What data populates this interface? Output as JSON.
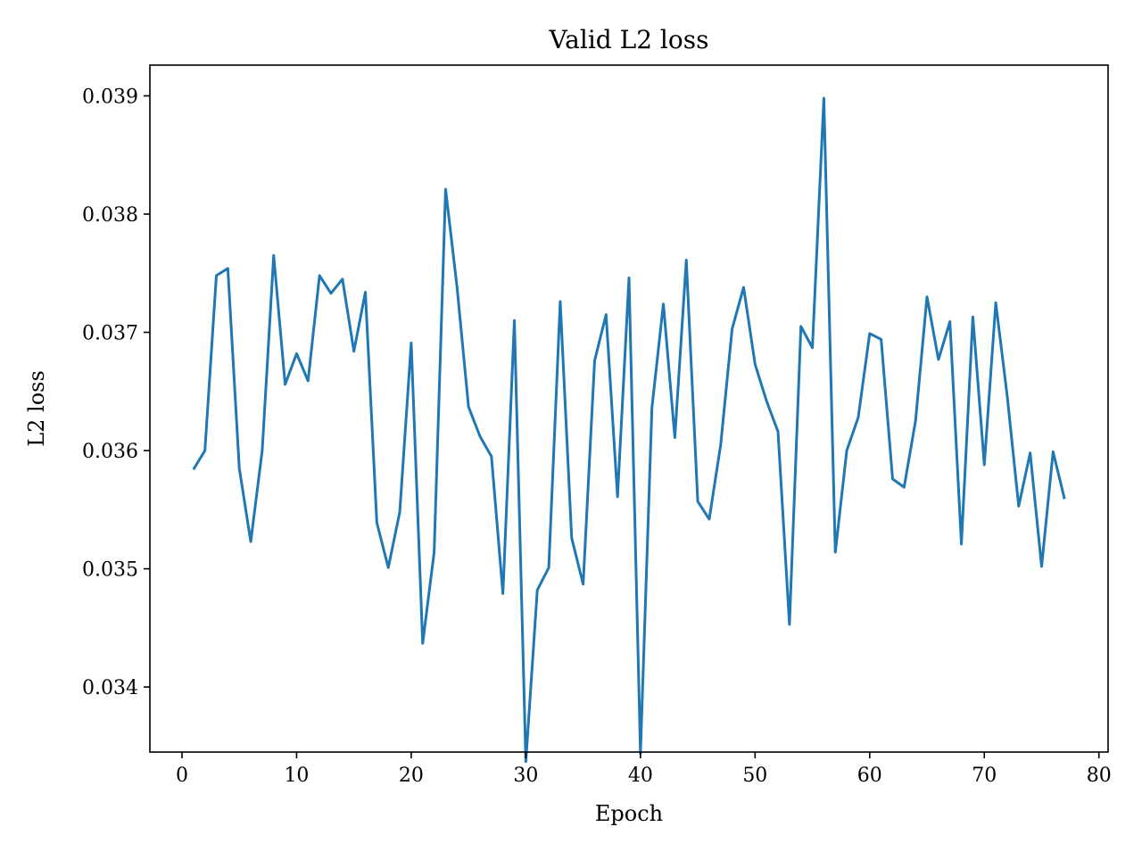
{
  "chart_data": {
    "type": "line",
    "title": "Valid L2 loss",
    "xlabel": "Epoch",
    "ylabel": "L2 loss",
    "xlim": [
      -2.8,
      80.8
    ],
    "ylim": [
      0.03345,
      0.03926
    ],
    "xticks": [
      0,
      10,
      20,
      30,
      40,
      50,
      60,
      70,
      80
    ],
    "xtick_labels": [
      "0",
      "10",
      "20",
      "30",
      "40",
      "50",
      "60",
      "70",
      "80"
    ],
    "yticks": [
      0.034,
      0.035,
      0.036,
      0.037,
      0.038,
      0.039
    ],
    "ytick_labels": [
      "0.034",
      "0.035",
      "0.036",
      "0.037",
      "0.038",
      "0.039"
    ],
    "grid": false,
    "line_color": "#1f77b4",
    "series": [
      {
        "x": [
          1,
          2,
          3,
          4,
          5,
          6,
          7,
          8,
          9,
          10,
          11,
          12,
          13,
          14,
          15,
          16,
          17,
          18,
          19,
          20,
          21,
          22,
          23,
          24,
          25,
          26,
          27,
          28,
          29,
          30,
          31,
          32,
          33,
          34,
          35,
          36,
          37,
          38,
          39,
          40,
          41,
          42,
          43,
          44,
          45,
          46,
          47,
          48,
          49,
          50,
          51,
          52,
          53,
          54,
          55,
          56,
          57,
          58,
          59,
          60,
          61,
          62,
          63,
          64,
          65,
          66,
          67,
          68,
          69,
          70,
          71,
          72,
          73,
          74,
          75,
          76,
          77
        ],
        "values": [
          0.03584,
          0.036,
          0.03748,
          0.03754,
          0.03585,
          0.03523,
          0.036,
          0.03765,
          0.03656,
          0.03682,
          0.03659,
          0.03748,
          0.03733,
          0.03745,
          0.03684,
          0.03734,
          0.03539,
          0.03501,
          0.03548,
          0.03691,
          0.03437,
          0.03514,
          0.03821,
          0.03738,
          0.03637,
          0.03612,
          0.03595,
          0.03479,
          0.0371,
          0.03337,
          0.03482,
          0.03501,
          0.03726,
          0.03526,
          0.03487,
          0.03676,
          0.03715,
          0.03561,
          0.03746,
          0.03344,
          0.03636,
          0.03724,
          0.03611,
          0.03761,
          0.03557,
          0.03542,
          0.03605,
          0.03703,
          0.03738,
          0.03673,
          0.03642,
          0.03616,
          0.03453,
          0.03705,
          0.03687,
          0.03898,
          0.03514,
          0.036,
          0.03628,
          0.03699,
          0.03694,
          0.03576,
          0.03569,
          0.03625,
          0.0373,
          0.03677,
          0.03709,
          0.03521,
          0.03713,
          0.03588,
          0.03725,
          0.03646,
          0.03553,
          0.03598,
          0.03502,
          0.03599,
          0.03559
        ]
      }
    ]
  }
}
